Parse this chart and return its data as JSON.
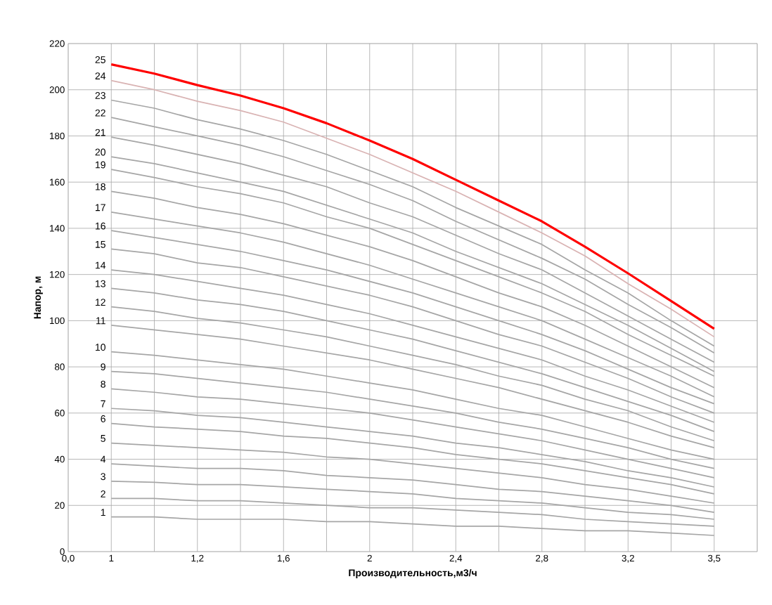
{
  "chart_data": {
    "type": "line",
    "xlabel": "Производительность,м3/ч",
    "ylabel": "Напор, м",
    "categories": [
      "0,0",
      "1",
      null,
      "1,2",
      null,
      "1,6",
      null,
      "2",
      null,
      "2,4",
      null,
      "2,8",
      null,
      "3,2",
      null,
      "3,5",
      null
    ],
    "ylim": [
      0,
      220
    ],
    "yticks": [
      0,
      20,
      40,
      60,
      80,
      100,
      120,
      140,
      160,
      180,
      200,
      220
    ],
    "grid": true,
    "marker": "none",
    "line_style": "solid",
    "series": [
      {
        "name": "1",
        "color": "#a6a6a6",
        "values": [
          null,
          15,
          15,
          14,
          14,
          14,
          13,
          13,
          12,
          11,
          11,
          10,
          9,
          9,
          8,
          7,
          null
        ]
      },
      {
        "name": "2",
        "color": "#a6a6a6",
        "values": [
          null,
          23,
          23,
          22,
          22,
          21,
          20,
          19,
          19,
          18,
          17,
          16,
          14,
          13,
          12,
          11,
          null
        ]
      },
      {
        "name": "3",
        "color": "#a6a6a6",
        "values": [
          null,
          30.5,
          30,
          29,
          29,
          28,
          27,
          26,
          25,
          23,
          22,
          21,
          19,
          17,
          16,
          14,
          null
        ]
      },
      {
        "name": "4",
        "color": "#a6a6a6",
        "values": [
          null,
          38,
          37,
          36,
          36,
          35,
          33,
          32,
          31,
          29,
          27,
          26,
          24,
          22,
          20,
          17,
          null
        ]
      },
      {
        "name": "5",
        "color": "#a6a6a6",
        "values": [
          null,
          47,
          46,
          45,
          44,
          43,
          41,
          40,
          38,
          36,
          34,
          32,
          29,
          27,
          24,
          21,
          null
        ]
      },
      {
        "name": "6",
        "color": "#a6a6a6",
        "values": [
          null,
          55.5,
          54,
          53,
          52,
          50,
          49,
          47,
          45,
          42,
          40,
          38,
          35,
          32,
          29,
          25,
          null
        ]
      },
      {
        "name": "7",
        "color": "#a6a6a6",
        "values": [
          null,
          62,
          61,
          59,
          58,
          56,
          54,
          52,
          50,
          47,
          45,
          42,
          39,
          35,
          32,
          28,
          null
        ]
      },
      {
        "name": "8",
        "color": "#a6a6a6",
        "values": [
          null,
          70.5,
          69,
          67,
          66,
          64,
          62,
          60,
          57,
          54,
          51,
          48,
          44,
          40,
          36,
          32,
          null
        ]
      },
      {
        "name": "9",
        "color": "#a6a6a6",
        "values": [
          null,
          78,
          77,
          75,
          73,
          71,
          69,
          66,
          63,
          60,
          56,
          53,
          49,
          45,
          40,
          36,
          null
        ]
      },
      {
        "name": "10",
        "color": "#a6a6a6",
        "values": [
          null,
          86.5,
          85,
          83,
          81,
          79,
          76,
          73,
          70,
          66,
          62,
          59,
          54,
          49,
          44,
          40,
          null
        ]
      },
      {
        "name": "11",
        "color": "#a6a6a6",
        "values": [
          null,
          98,
          96,
          94,
          92,
          89,
          86,
          83,
          79,
          75,
          71,
          66,
          61,
          56,
          50,
          45,
          null
        ]
      },
      {
        "name": "12",
        "color": "#a6a6a6",
        "values": [
          null,
          106,
          104,
          101,
          99,
          96,
          93,
          89,
          85,
          81,
          76,
          72,
          66,
          61,
          54,
          48,
          null
        ]
      },
      {
        "name": "13",
        "color": "#a6a6a6",
        "values": [
          null,
          114,
          112,
          109,
          107,
          104,
          100,
          96,
          92,
          87,
          82,
          77,
          71,
          65,
          59,
          52,
          null
        ]
      },
      {
        "name": "14",
        "color": "#a6a6a6",
        "values": [
          null,
          122,
          120,
          117,
          114,
          111,
          107,
          103,
          98,
          93,
          88,
          83,
          76,
          70,
          63,
          56,
          null
        ]
      },
      {
        "name": "15",
        "color": "#a6a6a6",
        "values": [
          null,
          131,
          129,
          125,
          123,
          119,
          115,
          111,
          106,
          100,
          94,
          89,
          82,
          75,
          67,
          60,
          null
        ]
      },
      {
        "name": "16",
        "color": "#a6a6a6",
        "values": [
          null,
          139,
          136,
          133,
          130,
          126,
          122,
          117,
          112,
          106,
          100,
          94,
          87,
          79,
          71,
          64,
          null
        ]
      },
      {
        "name": "17",
        "color": "#a6a6a6",
        "values": [
          null,
          147,
          144,
          141,
          138,
          134,
          129,
          124,
          118,
          112,
          106,
          100,
          92,
          84,
          76,
          67,
          null
        ]
      },
      {
        "name": "18",
        "color": "#a6a6a6",
        "values": [
          null,
          156,
          153,
          149,
          146,
          142,
          137,
          132,
          126,
          119,
          112,
          106,
          98,
          89,
          80,
          71,
          null
        ]
      },
      {
        "name": "19",
        "color": "#a6a6a6",
        "values": [
          null,
          165.5,
          162,
          158,
          155,
          151,
          145,
          140,
          133,
          126,
          119,
          112,
          104,
          94,
          85,
          76,
          null
        ]
      },
      {
        "name": "20",
        "color": "#a6a6a6",
        "values": [
          null,
          171,
          168,
          164,
          160,
          156,
          150,
          144,
          138,
          130,
          123,
          116,
          107,
          98,
          88,
          78,
          null
        ]
      },
      {
        "name": "21",
        "color": "#a6a6a6",
        "values": [
          null,
          179.5,
          176,
          172,
          168,
          163,
          158,
          151,
          145,
          137,
          129,
          122,
          112,
          102,
          92,
          82,
          null
        ]
      },
      {
        "name": "22",
        "color": "#a6a6a6",
        "values": [
          null,
          188,
          184,
          180,
          176,
          171,
          165,
          159,
          152,
          143,
          135,
          127,
          118,
          107,
          97,
          86,
          null
        ]
      },
      {
        "name": "23",
        "color": "#a6a6a6",
        "values": [
          null,
          195.5,
          192,
          187,
          183,
          178,
          172,
          165,
          158,
          149,
          141,
          133,
          122,
          112,
          100,
          89,
          null
        ]
      },
      {
        "name": "24",
        "color": "#d9b3b3",
        "values": [
          null,
          204,
          200,
          195,
          191,
          186,
          179,
          172,
          164,
          156,
          147,
          138,
          128,
          116,
          105,
          93,
          null
        ]
      },
      {
        "name": "25",
        "color": "#ff0000",
        "values": [
          null,
          211,
          207,
          202,
          197.5,
          192,
          185.5,
          178,
          170,
          161,
          152,
          143,
          132,
          120.5,
          108.5,
          96.5,
          null
        ]
      }
    ]
  }
}
